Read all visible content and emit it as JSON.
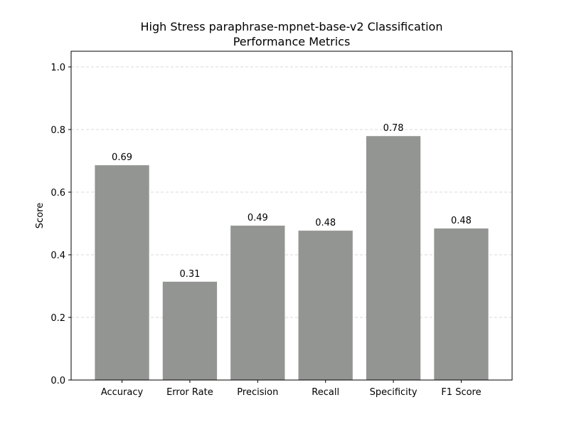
{
  "chart_data": {
    "type": "bar",
    "title_line1": "High Stress paraphrase-mpnet-base-v2 Classification",
    "title_line2": "Performance Metrics",
    "xlabel": "",
    "ylabel": "Score",
    "categories": [
      "Accuracy",
      "Error Rate",
      "Precision",
      "Recall",
      "Specificity",
      "F1 Score"
    ],
    "values": [
      0.686,
      0.314,
      0.493,
      0.477,
      0.779,
      0.484
    ],
    "value_labels": [
      "0.69",
      "0.31",
      "0.49",
      "0.48",
      "0.78",
      "0.48"
    ],
    "ylim": [
      0,
      1.05
    ],
    "yticks": [
      0.0,
      0.2,
      0.4,
      0.6,
      0.8,
      1.0
    ],
    "ytick_labels": [
      "0.0",
      "0.2",
      "0.4",
      "0.6",
      "0.8",
      "1.0"
    ],
    "grid": true,
    "grid_axis": "y",
    "bar_color": "#939592",
    "grid_color": "#cccccc"
  }
}
